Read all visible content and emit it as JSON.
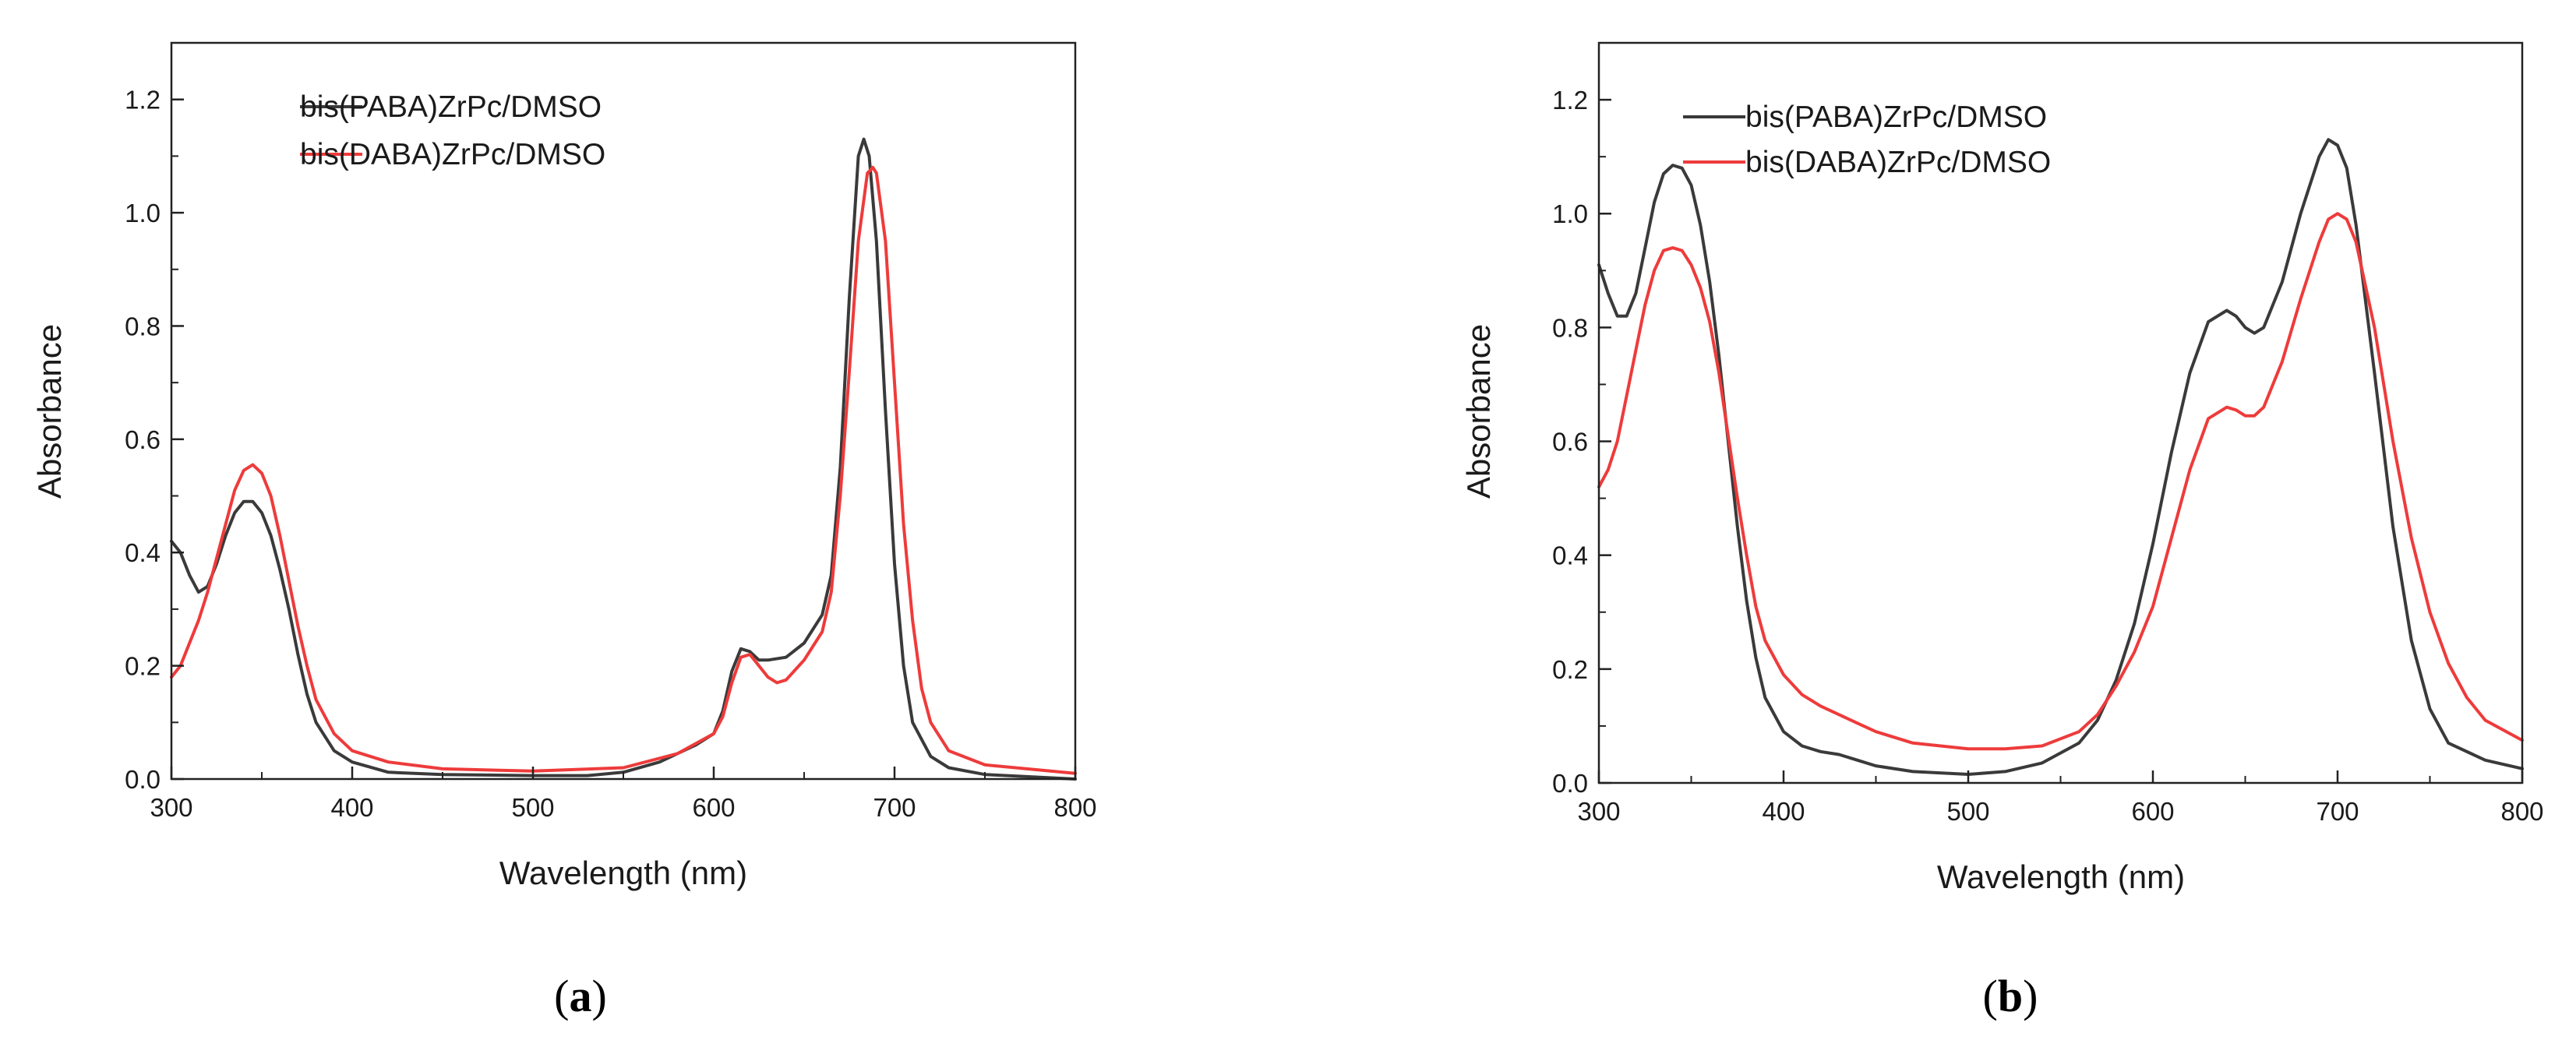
{
  "chart_data": [
    {
      "type": "line",
      "panel_label": "a",
      "caption_open": "(",
      "caption_close": ")",
      "xlabel": "Wavelength (nm)",
      "ylabel": "Absorbance",
      "xlim": [
        300,
        800
      ],
      "ylim": [
        0,
        1.3
      ],
      "xticks": [
        300,
        400,
        500,
        600,
        700,
        800
      ],
      "yticks": [
        0.0,
        0.2,
        0.4,
        0.6,
        0.8,
        1.0,
        1.2
      ],
      "ytick_labels": [
        "0.0",
        "0.2",
        "0.4",
        "0.6",
        "0.8",
        "1.0",
        "1.2"
      ],
      "legend_position": "top-center",
      "series": [
        {
          "name": "bis(PABA)ZrPc/DMSO",
          "color": "#3a3a3a",
          "points": [
            [
              300,
              0.42
            ],
            [
              305,
              0.4
            ],
            [
              310,
              0.36
            ],
            [
              315,
              0.33
            ],
            [
              320,
              0.34
            ],
            [
              325,
              0.38
            ],
            [
              330,
              0.43
            ],
            [
              335,
              0.47
            ],
            [
              340,
              0.49
            ],
            [
              345,
              0.49
            ],
            [
              350,
              0.47
            ],
            [
              355,
              0.43
            ],
            [
              360,
              0.37
            ],
            [
              365,
              0.3
            ],
            [
              370,
              0.22
            ],
            [
              375,
              0.15
            ],
            [
              380,
              0.1
            ],
            [
              390,
              0.05
            ],
            [
              400,
              0.03
            ],
            [
              420,
              0.012
            ],
            [
              450,
              0.008
            ],
            [
              500,
              0.006
            ],
            [
              530,
              0.006
            ],
            [
              550,
              0.012
            ],
            [
              570,
              0.03
            ],
            [
              590,
              0.06
            ],
            [
              600,
              0.08
            ],
            [
              605,
              0.12
            ],
            [
              610,
              0.19
            ],
            [
              615,
              0.23
            ],
            [
              620,
              0.225
            ],
            [
              625,
              0.21
            ],
            [
              630,
              0.21
            ],
            [
              640,
              0.215
            ],
            [
              650,
              0.24
            ],
            [
              660,
              0.29
            ],
            [
              665,
              0.36
            ],
            [
              670,
              0.55
            ],
            [
              675,
              0.85
            ],
            [
              680,
              1.1
            ],
            [
              683,
              1.13
            ],
            [
              686,
              1.1
            ],
            [
              690,
              0.95
            ],
            [
              695,
              0.65
            ],
            [
              700,
              0.38
            ],
            [
              705,
              0.2
            ],
            [
              710,
              0.1
            ],
            [
              720,
              0.04
            ],
            [
              730,
              0.02
            ],
            [
              750,
              0.008
            ],
            [
              800,
              0.0
            ]
          ]
        },
        {
          "name": "bis(DABA)ZrPc/DMSO",
          "color": "#ee3b3b",
          "points": [
            [
              300,
              0.18
            ],
            [
              305,
              0.2
            ],
            [
              310,
              0.24
            ],
            [
              315,
              0.28
            ],
            [
              320,
              0.33
            ],
            [
              325,
              0.39
            ],
            [
              330,
              0.45
            ],
            [
              335,
              0.51
            ],
            [
              340,
              0.545
            ],
            [
              345,
              0.555
            ],
            [
              350,
              0.54
            ],
            [
              355,
              0.5
            ],
            [
              360,
              0.43
            ],
            [
              365,
              0.35
            ],
            [
              370,
              0.27
            ],
            [
              375,
              0.2
            ],
            [
              380,
              0.14
            ],
            [
              390,
              0.08
            ],
            [
              400,
              0.05
            ],
            [
              420,
              0.03
            ],
            [
              450,
              0.018
            ],
            [
              500,
              0.014
            ],
            [
              550,
              0.02
            ],
            [
              580,
              0.045
            ],
            [
              600,
              0.08
            ],
            [
              605,
              0.11
            ],
            [
              610,
              0.17
            ],
            [
              615,
              0.215
            ],
            [
              620,
              0.22
            ],
            [
              625,
              0.2
            ],
            [
              630,
              0.18
            ],
            [
              635,
              0.17
            ],
            [
              640,
              0.175
            ],
            [
              650,
              0.21
            ],
            [
              660,
              0.26
            ],
            [
              665,
              0.33
            ],
            [
              670,
              0.5
            ],
            [
              675,
              0.72
            ],
            [
              680,
              0.95
            ],
            [
              685,
              1.07
            ],
            [
              688,
              1.08
            ],
            [
              690,
              1.07
            ],
            [
              695,
              0.95
            ],
            [
              700,
              0.7
            ],
            [
              705,
              0.45
            ],
            [
              710,
              0.28
            ],
            [
              715,
              0.16
            ],
            [
              720,
              0.1
            ],
            [
              730,
              0.05
            ],
            [
              750,
              0.025
            ],
            [
              800,
              0.01
            ]
          ]
        }
      ]
    },
    {
      "type": "line",
      "panel_label": "b",
      "caption_open": "(",
      "caption_close": ")",
      "xlabel": "Wavelength (nm)",
      "ylabel": "Absorbance",
      "xlim": [
        300,
        800
      ],
      "ylim": [
        0,
        1.3
      ],
      "xticks": [
        300,
        400,
        500,
        600,
        700,
        800
      ],
      "yticks": [
        0.0,
        0.2,
        0.4,
        0.6,
        0.8,
        1.0,
        1.2
      ],
      "ytick_labels": [
        "0.0",
        "0.2",
        "0.4",
        "0.6",
        "0.8",
        "1.0",
        "1.2"
      ],
      "legend_position": "top-center",
      "series": [
        {
          "name": "bis(PABA)ZrPc/DMSO",
          "color": "#3a3a3a",
          "points": [
            [
              300,
              0.91
            ],
            [
              305,
              0.86
            ],
            [
              310,
              0.82
            ],
            [
              315,
              0.82
            ],
            [
              320,
              0.86
            ],
            [
              325,
              0.94
            ],
            [
              330,
              1.02
            ],
            [
              335,
              1.07
            ],
            [
              340,
              1.085
            ],
            [
              345,
              1.08
            ],
            [
              350,
              1.05
            ],
            [
              355,
              0.98
            ],
            [
              360,
              0.88
            ],
            [
              365,
              0.75
            ],
            [
              370,
              0.6
            ],
            [
              375,
              0.45
            ],
            [
              380,
              0.32
            ],
            [
              385,
              0.22
            ],
            [
              390,
              0.15
            ],
            [
              400,
              0.09
            ],
            [
              410,
              0.065
            ],
            [
              420,
              0.055
            ],
            [
              430,
              0.05
            ],
            [
              440,
              0.04
            ],
            [
              450,
              0.03
            ],
            [
              470,
              0.02
            ],
            [
              500,
              0.015
            ],
            [
              520,
              0.02
            ],
            [
              540,
              0.035
            ],
            [
              560,
              0.07
            ],
            [
              570,
              0.11
            ],
            [
              580,
              0.18
            ],
            [
              590,
              0.28
            ],
            [
              600,
              0.42
            ],
            [
              610,
              0.58
            ],
            [
              620,
              0.72
            ],
            [
              630,
              0.81
            ],
            [
              640,
              0.83
            ],
            [
              645,
              0.82
            ],
            [
              650,
              0.8
            ],
            [
              655,
              0.79
            ],
            [
              660,
              0.8
            ],
            [
              670,
              0.88
            ],
            [
              680,
              1.0
            ],
            [
              690,
              1.1
            ],
            [
              695,
              1.13
            ],
            [
              700,
              1.12
            ],
            [
              705,
              1.08
            ],
            [
              710,
              0.98
            ],
            [
              720,
              0.72
            ],
            [
              730,
              0.45
            ],
            [
              740,
              0.25
            ],
            [
              750,
              0.13
            ],
            [
              760,
              0.07
            ],
            [
              780,
              0.04
            ],
            [
              800,
              0.025
            ]
          ]
        },
        {
          "name": "bis(DABA)ZrPc/DMSO",
          "color": "#ee3b3b",
          "points": [
            [
              300,
              0.52
            ],
            [
              305,
              0.55
            ],
            [
              310,
              0.6
            ],
            [
              315,
              0.68
            ],
            [
              320,
              0.76
            ],
            [
              325,
              0.84
            ],
            [
              330,
              0.9
            ],
            [
              335,
              0.935
            ],
            [
              340,
              0.94
            ],
            [
              345,
              0.935
            ],
            [
              350,
              0.91
            ],
            [
              355,
              0.87
            ],
            [
              360,
              0.81
            ],
            [
              365,
              0.72
            ],
            [
              370,
              0.61
            ],
            [
              375,
              0.5
            ],
            [
              380,
              0.4
            ],
            [
              385,
              0.31
            ],
            [
              390,
              0.25
            ],
            [
              400,
              0.19
            ],
            [
              410,
              0.155
            ],
            [
              420,
              0.135
            ],
            [
              430,
              0.12
            ],
            [
              440,
              0.105
            ],
            [
              450,
              0.09
            ],
            [
              470,
              0.07
            ],
            [
              500,
              0.06
            ],
            [
              520,
              0.06
            ],
            [
              540,
              0.065
            ],
            [
              560,
              0.09
            ],
            [
              570,
              0.12
            ],
            [
              580,
              0.17
            ],
            [
              590,
              0.23
            ],
            [
              600,
              0.31
            ],
            [
              610,
              0.43
            ],
            [
              620,
              0.55
            ],
            [
              630,
              0.64
            ],
            [
              640,
              0.66
            ],
            [
              645,
              0.655
            ],
            [
              650,
              0.645
            ],
            [
              655,
              0.645
            ],
            [
              660,
              0.66
            ],
            [
              670,
              0.74
            ],
            [
              680,
              0.85
            ],
            [
              690,
              0.95
            ],
            [
              695,
              0.99
            ],
            [
              700,
              1.0
            ],
            [
              705,
              0.99
            ],
            [
              710,
              0.95
            ],
            [
              720,
              0.8
            ],
            [
              730,
              0.6
            ],
            [
              740,
              0.43
            ],
            [
              750,
              0.3
            ],
            [
              760,
              0.21
            ],
            [
              770,
              0.15
            ],
            [
              780,
              0.11
            ],
            [
              800,
              0.075
            ]
          ]
        }
      ]
    }
  ]
}
